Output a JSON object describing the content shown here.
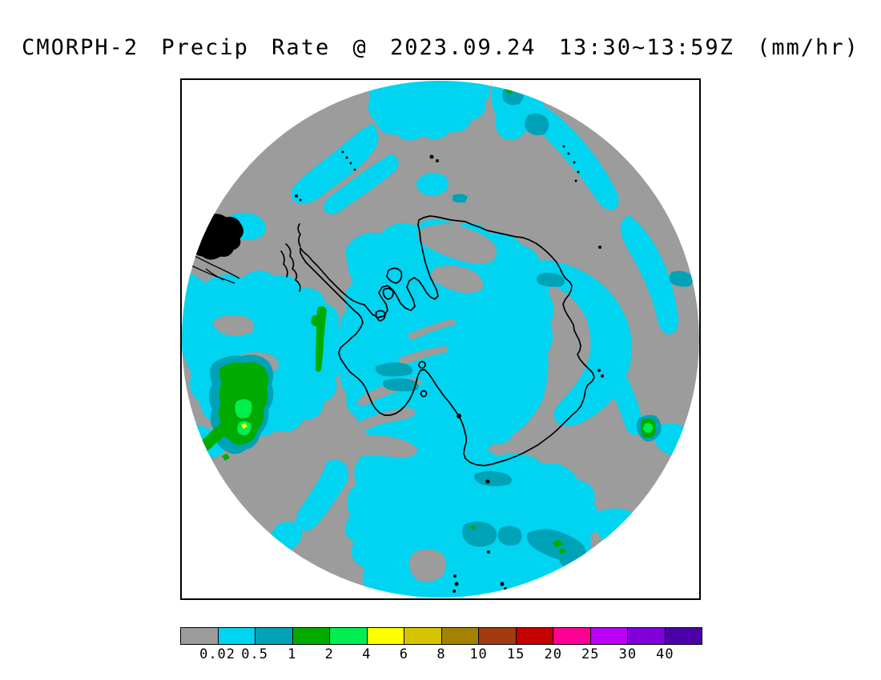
{
  "title": "CMORPH-2 Precip Rate @ 2023.09.24 13:30~13:59Z (mm/hr)",
  "colorbar": {
    "colors": [
      "#9C9C9C",
      "#00D4F0",
      "#00A2B8",
      "#00AB00",
      "#00EE4E",
      "#FFFF00",
      "#D7C400",
      "#A38300",
      "#A23C10",
      "#C50000",
      "#FF0095",
      "#BB00F5",
      "#7F00D8",
      "#4B00A8"
    ],
    "tick_labels": [
      "0.02",
      "0.5",
      "1",
      "2",
      "4",
      "6",
      "8",
      "10",
      "15",
      "20",
      "25",
      "30",
      "40"
    ]
  },
  "map": {
    "coastline_color": "#000000",
    "ocean_nodata_color": "#9C9C9C"
  }
}
